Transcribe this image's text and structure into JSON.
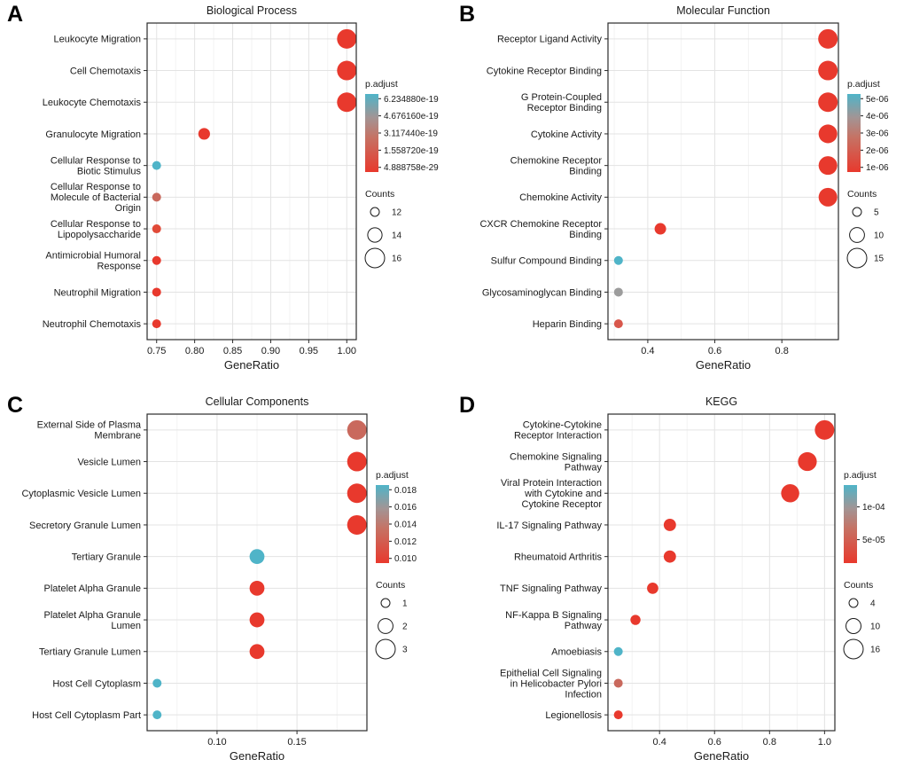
{
  "figure": {
    "background": "#FFFFFF",
    "text_color": "#1A1A1A",
    "border_color": "#2B2B2B",
    "grid_major_color": "#E3E3E3",
    "grid_minor_color": "#F0F0F0",
    "point_red": "#E8392D",
    "point_cyan": "#4FB4C8",
    "point_muted": "#C9695D",
    "point_gray": "#9C9C9C",
    "gradient_stops": [
      "#4FB4C8",
      "#A29595",
      "#C57365",
      "#E8392D"
    ],
    "gradient_offsets": [
      0,
      0.3,
      0.55,
      1
    ]
  },
  "chart_data": [
    {
      "type": "scatter",
      "panel_label": "A",
      "title": "Biological Process",
      "xlabel": "GeneRatio",
      "xlim": [
        0.7375,
        1.0125
      ],
      "xticks": [
        0.75,
        0.8,
        0.85,
        0.9,
        0.95,
        1.0
      ],
      "xtick_labels": [
        "0.75",
        "0.80",
        "0.85",
        "0.90",
        "0.95",
        "1.00"
      ],
      "rows": [
        {
          "label": "Leukocyte Migration",
          "x": 1.0,
          "count": 16,
          "color": "#E8392D"
        },
        {
          "label": "Cell Chemotaxis",
          "x": 1.0,
          "count": 16,
          "color": "#E8392D"
        },
        {
          "label": "Leukocyte Chemotaxis",
          "x": 1.0,
          "count": 16,
          "color": "#E8392D"
        },
        {
          "label": "Granulocyte Migration",
          "x": 0.8125,
          "count": 13,
          "color": "#E8392D"
        },
        {
          "label": "Cellular Response to\nBiotic Stimulus",
          "x": 0.75,
          "count": 12,
          "color": "#4FB4C8"
        },
        {
          "label": "Cellular Response to\nMolecule of Bacterial\nOrigin",
          "x": 0.75,
          "count": 12,
          "color": "#C9695D"
        },
        {
          "label": "Cellular Response to\nLipopolysaccharide",
          "x": 0.75,
          "count": 12,
          "color": "#E14A38"
        },
        {
          "label": "Antimicrobial Humoral\nResponse",
          "x": 0.75,
          "count": 12,
          "color": "#E8392D"
        },
        {
          "label": "Neutrophil Migration",
          "x": 0.75,
          "count": 12,
          "color": "#E8392D"
        },
        {
          "label": "Neutrophil Chemotaxis",
          "x": 0.75,
          "count": 12,
          "color": "#E8392D"
        }
      ],
      "legend": {
        "padjust_title": "p.adjust",
        "padjust_labels": [
          "6.234880e-19",
          "4.676160e-19",
          "3.117440e-19",
          "1.558720e-19",
          "4.888758e-29"
        ],
        "counts_title": "Counts",
        "counts": [
          12,
          14,
          16
        ]
      }
    },
    {
      "type": "scatter",
      "panel_label": "B",
      "title": "Molecular Function",
      "xlabel": "GeneRatio",
      "xlim": [
        0.28125,
        0.96875
      ],
      "xticks": [
        0.4,
        0.6,
        0.8
      ],
      "xtick_labels": [
        "0.4",
        "0.6",
        "0.8"
      ],
      "rows": [
        {
          "label": "Receptor Ligand Activity",
          "x": 0.9375,
          "count": 15,
          "color": "#E8392D"
        },
        {
          "label": "Cytokine Receptor Binding",
          "x": 0.9375,
          "count": 15,
          "color": "#E8392D"
        },
        {
          "label": "G Protein-Coupled\nReceptor Binding",
          "x": 0.9375,
          "count": 15,
          "color": "#E8392D"
        },
        {
          "label": "Cytokine Activity",
          "x": 0.9375,
          "count": 14,
          "color": "#E8392D"
        },
        {
          "label": "Chemokine Receptor\nBinding",
          "x": 0.9375,
          "count": 14,
          "color": "#E8392D"
        },
        {
          "label": "Chemokine Activity",
          "x": 0.9375,
          "count": 14,
          "color": "#E8392D"
        },
        {
          "label": "CXCR Chemokine Receptor\nBinding",
          "x": 0.4375,
          "count": 7,
          "color": "#E8392D"
        },
        {
          "label": "Sulfur Compound Binding",
          "x": 0.3125,
          "count": 5,
          "color": "#4FB4C8"
        },
        {
          "label": "Glycosaminoglycan Binding",
          "x": 0.3125,
          "count": 5,
          "color": "#9C9C9C"
        },
        {
          "label": "Heparin Binding",
          "x": 0.3125,
          "count": 5,
          "color": "#D8574B"
        }
      ],
      "legend": {
        "padjust_title": "p.adjust",
        "padjust_labels": [
          "5e-06",
          "4e-06",
          "3e-06",
          "2e-06",
          "1e-06"
        ],
        "counts_title": "Counts",
        "counts": [
          5,
          10,
          15
        ]
      }
    },
    {
      "type": "scatter",
      "panel_label": "C",
      "title": "Cellular Components",
      "xlabel": "GeneRatio",
      "xlim": [
        0.05625,
        0.19375
      ],
      "xticks": [
        0.1,
        0.15
      ],
      "xtick_labels": [
        "0.10",
        "0.15"
      ],
      "rows": [
        {
          "label": "External Side of Plasma\nMembrane",
          "x": 0.1875,
          "count": 3,
          "color": "#C9695D"
        },
        {
          "label": "Vesicle Lumen",
          "x": 0.1875,
          "count": 3,
          "color": "#E8392D"
        },
        {
          "label": "Cytoplasmic Vesicle Lumen",
          "x": 0.1875,
          "count": 3,
          "color": "#E8392D"
        },
        {
          "label": "Secretory Granule Lumen",
          "x": 0.1875,
          "count": 3,
          "color": "#E8392D"
        },
        {
          "label": "Tertiary Granule",
          "x": 0.125,
          "count": 2,
          "color": "#4FB4C8"
        },
        {
          "label": "Platelet Alpha Granule",
          "x": 0.125,
          "count": 2,
          "color": "#E8392D"
        },
        {
          "label": "Platelet Alpha Granule\nLumen",
          "x": 0.125,
          "count": 2,
          "color": "#E8392D"
        },
        {
          "label": "Tertiary Granule Lumen",
          "x": 0.125,
          "count": 2,
          "color": "#E8392D"
        },
        {
          "label": "Host Cell Cytoplasm",
          "x": 0.0625,
          "count": 1,
          "color": "#4FB4C8"
        },
        {
          "label": "Host Cell Cytoplasm Part",
          "x": 0.0625,
          "count": 1,
          "color": "#4FB4C8"
        }
      ],
      "legend": {
        "padjust_title": "p.adjust",
        "padjust_labels": [
          "0.018",
          "0.016",
          "0.014",
          "0.012",
          "0.010"
        ],
        "counts_title": "Counts",
        "counts": [
          1,
          2,
          3
        ]
      }
    },
    {
      "type": "scatter",
      "panel_label": "D",
      "title": "KEGG",
      "xlabel": "GeneRatio",
      "xlim": [
        0.2125,
        1.0375
      ],
      "xticks": [
        0.4,
        0.6,
        0.8,
        1.0
      ],
      "xtick_labels": [
        "0.4",
        "0.6",
        "0.8",
        "1.0"
      ],
      "rows": [
        {
          "label": "Cytokine-Cytokine\nReceptor Interaction",
          "x": 1.0,
          "count": 16,
          "color": "#E8392D"
        },
        {
          "label": "Chemokine Signaling\nPathway",
          "x": 0.9375,
          "count": 15,
          "color": "#E8392D"
        },
        {
          "label": "Viral Protein Interaction\nwith Cytokine and\nCytokine Receptor",
          "x": 0.875,
          "count": 14,
          "color": "#E8392D"
        },
        {
          "label": "IL-17 Signaling Pathway",
          "x": 0.4375,
          "count": 7,
          "color": "#E8392D"
        },
        {
          "label": "Rheumatoid Arthritis",
          "x": 0.4375,
          "count": 7,
          "color": "#E8392D"
        },
        {
          "label": "TNF Signaling Pathway",
          "x": 0.375,
          "count": 6,
          "color": "#E8392D"
        },
        {
          "label": "NF-Kappa B Signaling\nPathway",
          "x": 0.3125,
          "count": 5,
          "color": "#E8392D"
        },
        {
          "label": "Amoebiasis",
          "x": 0.25,
          "count": 4,
          "color": "#4FB4C8"
        },
        {
          "label": "Epithelial Cell Signaling\nin Helicobacter Pylori\nInfection",
          "x": 0.25,
          "count": 4,
          "color": "#C9695D"
        },
        {
          "label": "Legionellosis",
          "x": 0.25,
          "count": 4,
          "color": "#E8392D"
        }
      ],
      "legend": {
        "padjust_title": "p.adjust",
        "padjust_labels": [
          "1e-04",
          "5e-05"
        ],
        "counts_title": "Counts",
        "counts": [
          4,
          10,
          16
        ]
      }
    }
  ]
}
